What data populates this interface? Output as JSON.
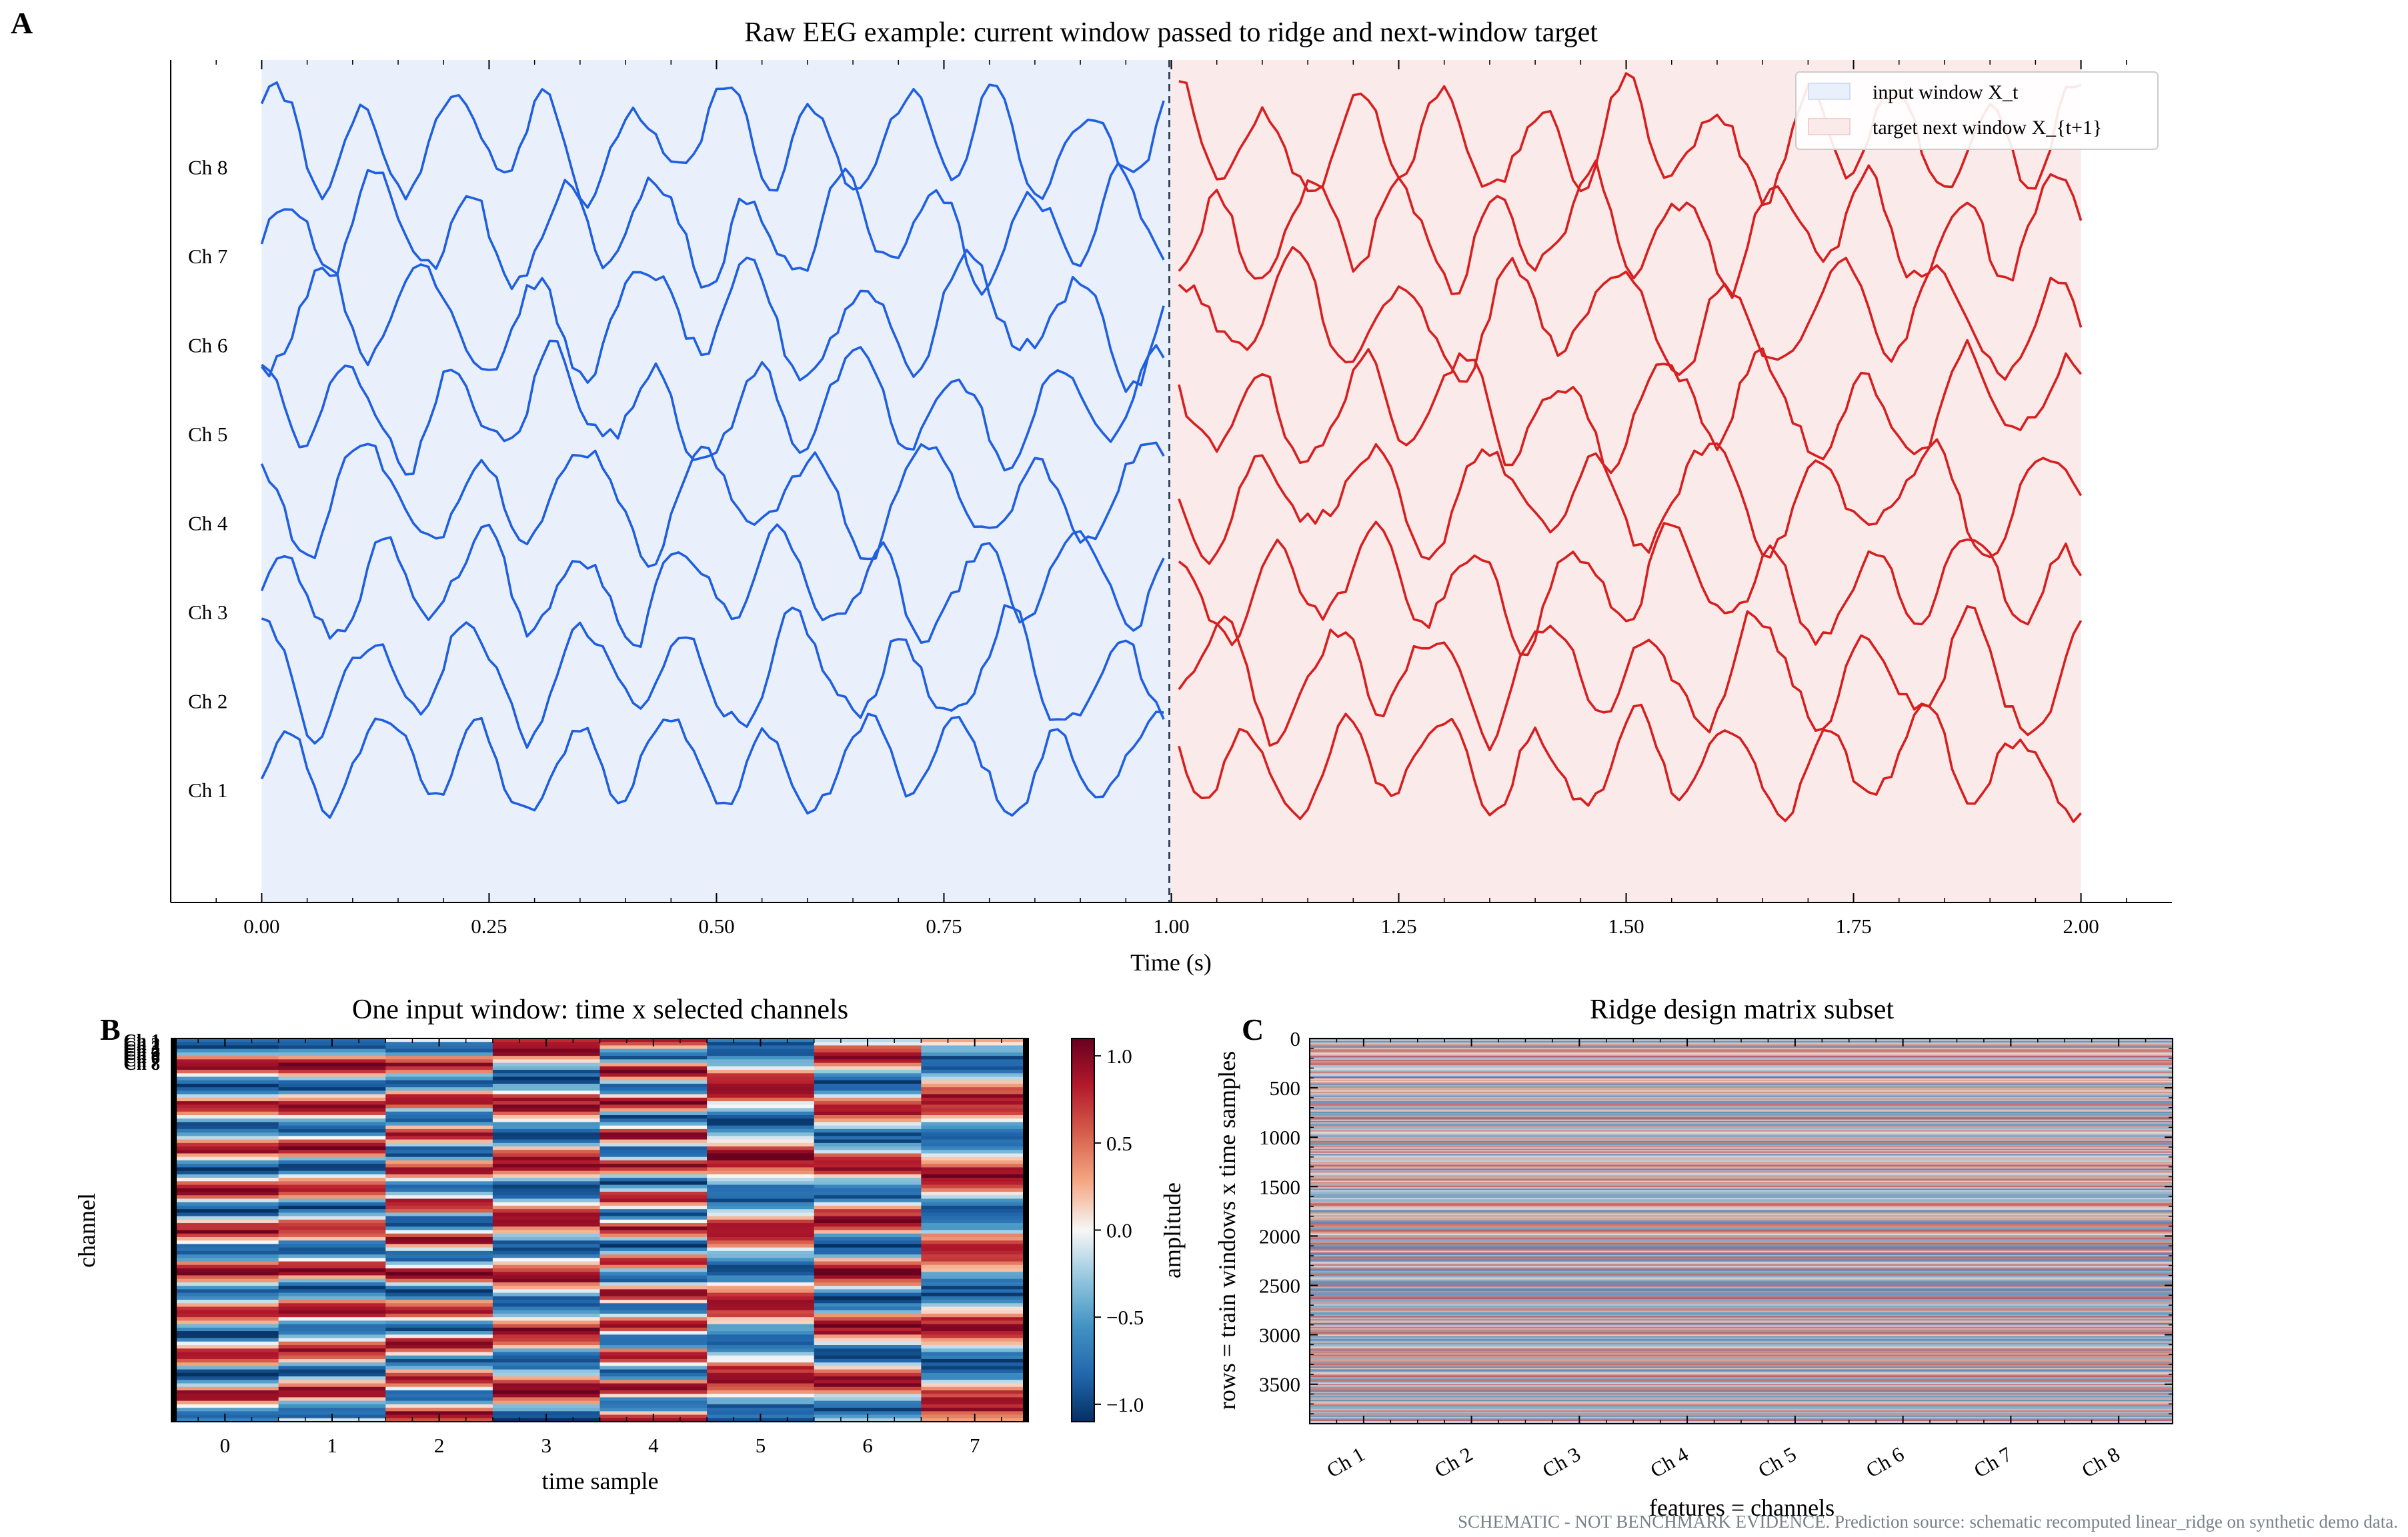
{
  "panels": {
    "A": "A",
    "B": "B",
    "C": "C"
  },
  "footer_note": "SCHEMATIC - NOT BENCHMARK EVIDENCE. Prediction source: schematic recomputed linear_ridge on synthetic demo data.",
  "colors": {
    "input": "#1f5fe0",
    "target": "#d62020",
    "input_fill": "#eaf0fb",
    "target_fill": "#fbeaea"
  },
  "chart_data": [
    {
      "type": "line",
      "title": "Raw EEG example: current window passed to ridge and next-window target",
      "xlabel": "Time (s)",
      "ylabel": "",
      "xlim": [
        -0.1,
        2.1
      ],
      "xticks": [
        "0.00",
        "0.25",
        "0.50",
        "0.75",
        "1.00",
        "1.25",
        "1.50",
        "1.75",
        "2.00"
      ],
      "channels": [
        "Ch 1",
        "Ch 2",
        "Ch 3",
        "Ch 4",
        "Ch 5",
        "Ch 6",
        "Ch 7",
        "Ch 8"
      ],
      "window_boundary_s": 1.0,
      "regions": [
        {
          "name": "input window X_t",
          "x": [
            0.0,
            1.0
          ]
        },
        {
          "name": "target next window X_{t+1}",
          "x": [
            1.0,
            2.0
          ]
        }
      ],
      "legend": [
        "input window X_t",
        "target next window X_{t+1}"
      ],
      "legend_position": "top-right",
      "series_note": "synthetic oscillating traces, one per channel, offset vertically; ~8-10 Hz dominant frequency"
    },
    {
      "type": "heatmap",
      "title": "One input window: time x selected channels",
      "xlabel": "time sample",
      "ylabel": "channel",
      "xticks": [
        "0",
        "1",
        "2",
        "3",
        "4",
        "5",
        "6",
        "7"
      ],
      "yticks": [
        "Ch 1",
        "Ch 2",
        "Ch 3",
        "Ch 4",
        "Ch 5",
        "Ch 6",
        "Ch 7",
        "Ch 8"
      ],
      "colorbar": {
        "label": "amplitude",
        "ticks": [
          "1.0",
          "0.5",
          "0.0",
          "−0.5",
          "−1.0"
        ],
        "range": [
          -1.1,
          1.1
        ],
        "colormap": "RdBu_r"
      }
    },
    {
      "type": "heatmap",
      "title": "Ridge design matrix subset",
      "xlabel": "features = channels",
      "ylabel": "rows = train windows x time samples",
      "xticks": [
        "Ch 1",
        "Ch 2",
        "Ch 3",
        "Ch 4",
        "Ch 5",
        "Ch 6",
        "Ch 7",
        "Ch 8"
      ],
      "yticks": [
        "0",
        "500",
        "1000",
        "1500",
        "2000",
        "2500",
        "3000",
        "3500"
      ],
      "ylim": [
        3900,
        0
      ]
    }
  ]
}
